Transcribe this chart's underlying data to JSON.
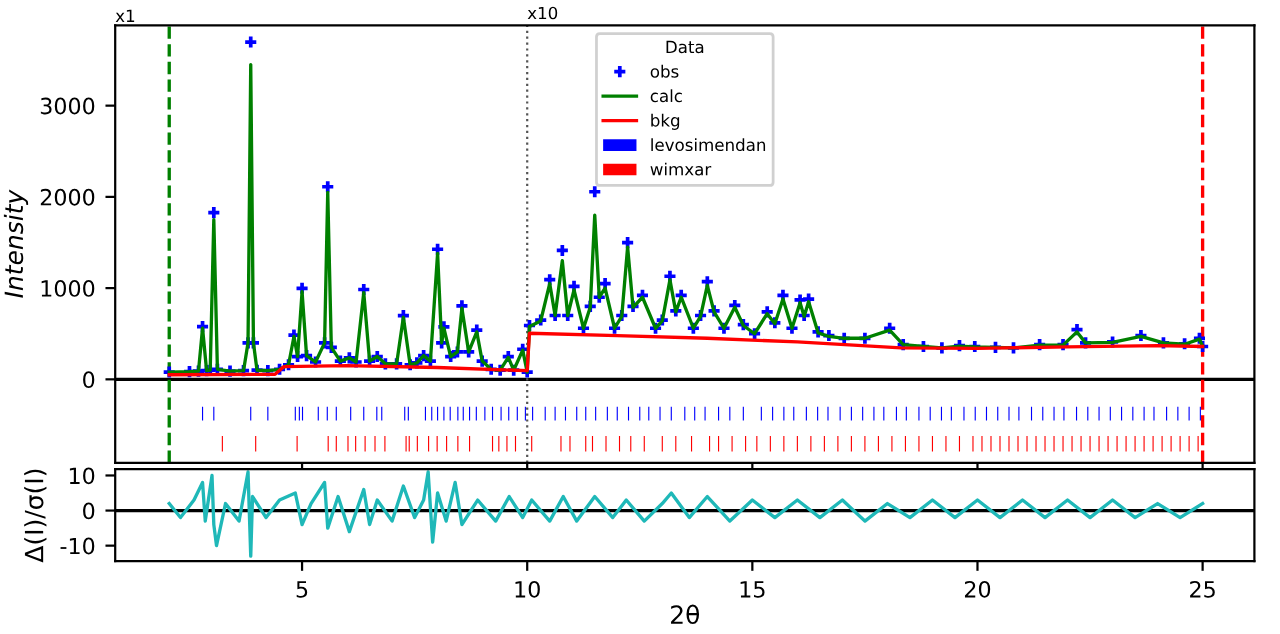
{
  "chart_data": [
    {
      "type": "scatter",
      "ylabel": "Intensity",
      "xlim": [
        0.85,
        26.15
      ],
      "ylim": [
        -915,
        3880
      ],
      "yticks": [
        0,
        1000,
        2000,
        3000
      ],
      "xticks": [
        5,
        10,
        15,
        20,
        25
      ],
      "tick_labels": "y",
      "grid": false,
      "legend": "top",
      "legend_title": "Data",
      "x": [
        2.05,
        2.5,
        2.7,
        2.79,
        2.88,
        2.96,
        3.04,
        3.12,
        3.4,
        3.7,
        3.8,
        3.86,
        3.92,
        4.0,
        4.24,
        4.5,
        4.7,
        4.82,
        4.9,
        5.0,
        5.1,
        5.3,
        5.5,
        5.57,
        5.65,
        5.85,
        6.05,
        6.2,
        6.37,
        6.5,
        6.67,
        6.85,
        7.1,
        7.25,
        7.4,
        7.55,
        7.7,
        7.85,
        8.01,
        8.1,
        8.15,
        8.3,
        8.45,
        8.55,
        8.7,
        8.88,
        9.0,
        9.2,
        9.4,
        9.58,
        9.7,
        9.9,
        10.0,
        10.05,
        10.3,
        10.5,
        10.62,
        10.78,
        10.9,
        11.04,
        11.25,
        11.4,
        11.5,
        11.6,
        11.73,
        11.94,
        12.1,
        12.23,
        12.35,
        12.56,
        12.85,
        13.0,
        13.17,
        13.3,
        13.42,
        13.69,
        13.85,
        14.0,
        14.15,
        14.37,
        14.61,
        14.8,
        15.05,
        15.33,
        15.5,
        15.68,
        15.88,
        16.06,
        16.15,
        16.25,
        16.46,
        16.7,
        17.04,
        17.5,
        18.05,
        18.35,
        18.8,
        19.21,
        19.6,
        19.94,
        20.4,
        20.8,
        21.38,
        21.9,
        22.21,
        22.4,
        23.0,
        23.63,
        24.13,
        24.6,
        24.93,
        25.0
      ],
      "series": [
        {
          "name": "obs",
          "type": "scatter",
          "marker": "cross",
          "color": "#0000ff",
          "values": [
            80,
            85,
            90,
            578,
            95,
            100,
            1827,
            110,
            90,
            95,
            400,
            3697,
            400,
            100,
            95,
            110,
            160,
            485,
            250,
            998,
            260,
            190,
            400,
            2111,
            350,
            200,
            235,
            190,
            985,
            200,
            250,
            170,
            170,
            698,
            160,
            180,
            260,
            200,
            1426,
            400,
            575,
            250,
            300,
            805,
            300,
            540,
            200,
            110,
            100,
            250,
            100,
            330,
            80,
            590,
            650,
            1092,
            700,
            1413,
            700,
            1020,
            560,
            800,
            2056,
            900,
            1050,
            560,
            700,
            1499,
            800,
            920,
            560,
            650,
            1130,
            750,
            920,
            560,
            700,
            1070,
            750,
            560,
            810,
            600,
            500,
            740,
            620,
            920,
            560,
            870,
            700,
            880,
            520,
            480,
            450,
            450,
            560,
            380,
            360,
            345,
            370,
            360,
            350,
            345,
            380,
            380,
            545,
            400,
            410,
            480,
            400,
            390,
            450,
            360
          ]
        },
        {
          "name": "calc",
          "type": "line",
          "color": "#008000",
          "values": [
            80,
            85,
            90,
            560,
            95,
            100,
            1750,
            110,
            90,
            95,
            400,
            3450,
            400,
            100,
            95,
            110,
            160,
            470,
            250,
            960,
            260,
            190,
            400,
            2050,
            350,
            200,
            235,
            190,
            950,
            200,
            250,
            170,
            170,
            680,
            160,
            180,
            260,
            200,
            1380,
            400,
            560,
            250,
            300,
            780,
            300,
            520,
            200,
            110,
            100,
            240,
            100,
            320,
            80,
            580,
            640,
            1050,
            700,
            1300,
            700,
            980,
            560,
            790,
            1800,
            900,
            1000,
            560,
            690,
            1450,
            790,
            900,
            560,
            640,
            1090,
            740,
            900,
            560,
            690,
            1030,
            740,
            560,
            790,
            590,
            500,
            720,
            610,
            880,
            560,
            840,
            690,
            850,
            510,
            470,
            450,
            450,
            540,
            380,
            360,
            345,
            365,
            355,
            350,
            345,
            375,
            375,
            520,
            400,
            405,
            470,
            400,
            385,
            440,
            360
          ]
        },
        {
          "name": "bkg",
          "type": "line",
          "color": "#ff0000",
          "x": [
            2.05,
            4.4,
            4.6,
            6.0,
            8.0,
            10.0,
            10.05,
            12.0,
            14.0,
            16.0,
            18.3,
            20.0,
            22.0,
            24.0,
            25.0
          ],
          "values": [
            50,
            55,
            140,
            150,
            130,
            95,
            505,
            480,
            450,
            410,
            345,
            340,
            355,
            370,
            360
          ]
        },
        {
          "name": "levosimendan",
          "type": "bar",
          "color": "#0000ff",
          "base": [
            -450,
            -450,
            -450,
            -450,
            -450,
            -450,
            -450,
            -450,
            -450,
            -450,
            -450,
            -450,
            -450,
            -450,
            -450,
            -450,
            -450,
            -450,
            -450,
            -450,
            -450,
            -450,
            -450,
            -450,
            -450,
            -450,
            -450,
            -450,
            -450,
            -450,
            -450,
            -450,
            -450,
            -450,
            -450,
            -450,
            -450,
            -450,
            -450,
            -450,
            -450,
            -450,
            -450,
            -450,
            -450,
            -450,
            -450,
            -450,
            -450,
            -450,
            -450,
            -450,
            -450,
            -450,
            -450,
            -450,
            -450,
            -450,
            -450,
            -450,
            -450,
            -450,
            -450,
            -450,
            -450,
            -450,
            -450,
            -450,
            -450,
            -450,
            -450,
            -450,
            -450,
            -450,
            -450,
            -450,
            -450,
            -450,
            -450,
            -450,
            -450,
            -450,
            -450,
            -450,
            -450,
            -450,
            -450,
            -450,
            -450,
            -450,
            -450
          ],
          "x": [
            2.79,
            3.04,
            3.86,
            4.24,
            4.85,
            4.94,
            5.01,
            5.36,
            5.56,
            5.76,
            6.08,
            6.37,
            6.66,
            6.77,
            7.28,
            7.36,
            7.74,
            7.88,
            8.01,
            8.15,
            8.29,
            8.46,
            8.58,
            8.72,
            8.87,
            9.06,
            9.23,
            9.42,
            9.59,
            9.78,
            9.96,
            10.12,
            10.4,
            10.62,
            10.85,
            11.1,
            11.3,
            11.52,
            11.78,
            12.0,
            12.25,
            12.5,
            12.7,
            12.95,
            13.2,
            13.5,
            13.72,
            13.95,
            14.25,
            14.5,
            14.8,
            15.2,
            15.45,
            15.7,
            15.92,
            16.2,
            16.45,
            16.68,
            16.95,
            17.2,
            17.45,
            17.7,
            17.92,
            18.2,
            18.42,
            18.7,
            18.95,
            19.2,
            19.42,
            19.7,
            19.95,
            20.2,
            20.45,
            20.7,
            20.92,
            21.2,
            21.45,
            21.7,
            21.92,
            22.2,
            22.45,
            22.7,
            22.95,
            23.2,
            23.45,
            23.7,
            23.92,
            24.2,
            24.45,
            24.7,
            24.95
          ],
          "values": [
            150,
            150,
            150,
            150,
            150,
            150,
            150,
            150,
            150,
            150,
            150,
            150,
            150,
            150,
            150,
            150,
            150,
            150,
            150,
            150,
            150,
            150,
            150,
            150,
            150,
            150,
            150,
            150,
            150,
            150,
            150,
            150,
            150,
            150,
            150,
            150,
            150,
            150,
            150,
            150,
            150,
            150,
            150,
            150,
            150,
            150,
            150,
            150,
            150,
            150,
            150,
            150,
            150,
            150,
            150,
            150,
            150,
            150,
            150,
            150,
            150,
            150,
            150,
            150,
            150,
            150,
            150,
            150,
            150,
            150,
            150,
            150,
            150,
            150,
            150,
            150,
            150,
            150,
            150,
            150,
            150,
            150,
            150,
            150,
            150,
            150,
            150,
            150,
            150,
            150,
            150
          ]
        },
        {
          "name": "wimxar",
          "type": "bar",
          "color": "#ff0000",
          "base": [
            -790,
            -790,
            -790,
            -790,
            -790,
            -790,
            -790,
            -790,
            -790,
            -790,
            -790,
            -790,
            -790,
            -790,
            -790,
            -790,
            -790,
            -790,
            -790,
            -790,
            -790,
            -790,
            -790,
            -790,
            -790,
            -790,
            -790,
            -790,
            -790,
            -790,
            -790,
            -790,
            -790,
            -790,
            -790,
            -790,
            -790,
            -790,
            -790,
            -790,
            -790,
            -790,
            -790,
            -790,
            -790,
            -790,
            -790,
            -790,
            -790,
            -790,
            -790,
            -790,
            -790,
            -790,
            -790,
            -790,
            -790,
            -790,
            -790,
            -790,
            -790,
            -790,
            -790,
            -790,
            -790,
            -790,
            -790,
            -790,
            -790,
            -790,
            -790,
            -790,
            -790,
            -790,
            -790,
            -790,
            -790,
            -790,
            -790,
            -790
          ],
          "x": [
            3.23,
            3.97,
            4.89,
            5.58,
            5.76,
            6.02,
            6.19,
            6.4,
            6.62,
            6.84,
            7.31,
            7.38,
            7.56,
            7.81,
            8.0,
            8.21,
            8.46,
            8.72,
            9.23,
            9.37,
            9.55,
            9.74,
            10.1,
            10.75,
            10.95,
            11.3,
            11.45,
            11.75,
            12.05,
            12.3,
            12.6,
            13.0,
            13.3,
            13.65,
            14.05,
            14.25,
            14.55,
            14.85,
            15.1,
            15.4,
            15.7,
            16.0,
            16.3,
            16.6,
            16.9,
            17.2,
            17.5,
            17.8,
            18.1,
            18.4,
            18.7,
            19.0,
            19.3,
            19.6,
            19.9,
            20.1,
            20.3,
            20.5,
            20.7,
            20.9,
            21.1,
            21.3,
            21.5,
            21.7,
            21.9,
            22.1,
            22.3,
            22.5,
            22.7,
            22.9,
            23.1,
            23.3,
            23.5,
            23.7,
            23.9,
            24.1,
            24.3,
            24.5,
            24.7,
            24.9
          ],
          "values": [
            170,
            170,
            170,
            170,
            170,
            170,
            170,
            170,
            170,
            170,
            170,
            170,
            170,
            170,
            170,
            170,
            170,
            170,
            170,
            170,
            170,
            170,
            170,
            170,
            170,
            170,
            170,
            170,
            170,
            170,
            170,
            170,
            170,
            170,
            170,
            170,
            170,
            170,
            170,
            170,
            170,
            170,
            170,
            170,
            170,
            170,
            170,
            170,
            170,
            170,
            170,
            170,
            170,
            170,
            170,
            170,
            170,
            170,
            170,
            170,
            170,
            170,
            170,
            170,
            170,
            170,
            170,
            170,
            170,
            170,
            170,
            170,
            170,
            170,
            170,
            170,
            170,
            170,
            170,
            170
          ]
        }
      ],
      "ref_lines": [
        {
          "axis": "y",
          "value": 0,
          "color": "#000000",
          "line_style": "solid"
        },
        {
          "axis": "x",
          "value": 2.05,
          "color": "#008000",
          "line_style": "dashed"
        },
        {
          "axis": "x",
          "value": 25,
          "color": "#ff0000",
          "line_style": "dashed"
        },
        {
          "axis": "x",
          "value": 10,
          "color": "#555555",
          "line_style": "dotted"
        }
      ],
      "annotations": [
        "x1",
        {
          "text": "x10",
          "x": 10,
          "y": 3880
        }
      ]
    },
    {
      "type": "line",
      "xlabel": "2θ",
      "ylabel": "Δ(I)/σ(I)",
      "xlim": [
        0.85,
        26.15
      ],
      "ylim": [
        -14.4,
        11.8
      ],
      "xticks": [
        5,
        10,
        15,
        20,
        25
      ],
      "yticks": [
        -10,
        0,
        10
      ],
      "grid": false,
      "x": [
        2.05,
        2.3,
        2.6,
        2.79,
        2.85,
        3.0,
        3.04,
        3.1,
        3.3,
        3.6,
        3.8,
        3.86,
        3.9,
        4.2,
        4.5,
        4.85,
        5.0,
        5.2,
        5.5,
        5.57,
        5.8,
        6.05,
        6.37,
        6.5,
        6.67,
        7.0,
        7.25,
        7.5,
        7.7,
        7.8,
        7.9,
        8.01,
        8.2,
        8.4,
        8.55,
        8.9,
        9.3,
        9.6,
        9.9,
        10.1,
        10.5,
        10.8,
        11.1,
        11.5,
        11.9,
        12.2,
        12.6,
        13.0,
        13.2,
        13.6,
        14.0,
        14.5,
        15.0,
        15.5,
        16.0,
        16.5,
        17.0,
        17.5,
        18.0,
        18.5,
        19.0,
        19.5,
        20.0,
        20.5,
        21.0,
        21.5,
        22.0,
        22.5,
        23.0,
        23.5,
        24.0,
        24.5,
        25.0
      ],
      "series": [
        {
          "color": "#1fb8b8",
          "values": [
            2,
            -2,
            3,
            8,
            -3,
            10,
            -4,
            -10,
            2,
            -3,
            11,
            -13,
            4,
            -2,
            3,
            5,
            -4,
            2,
            8,
            -5,
            4,
            -6,
            6,
            -4,
            3,
            -3,
            7,
            -2,
            3,
            11,
            -9,
            5,
            -3,
            8,
            -4,
            3,
            -3,
            4,
            -2,
            3,
            -3,
            4,
            -3,
            4,
            -2,
            3,
            -3,
            2,
            5,
            -2,
            4,
            -3,
            3,
            -2,
            3,
            -2,
            3,
            -3,
            2,
            -2,
            3,
            -2,
            3,
            -2,
            3,
            -2,
            3,
            -2,
            3,
            -2,
            2,
            -2,
            2
          ]
        }
      ],
      "ref_lines": [
        {
          "axis": "y",
          "value": 0,
          "color": "#000000",
          "line_style": "solid"
        }
      ]
    }
  ]
}
